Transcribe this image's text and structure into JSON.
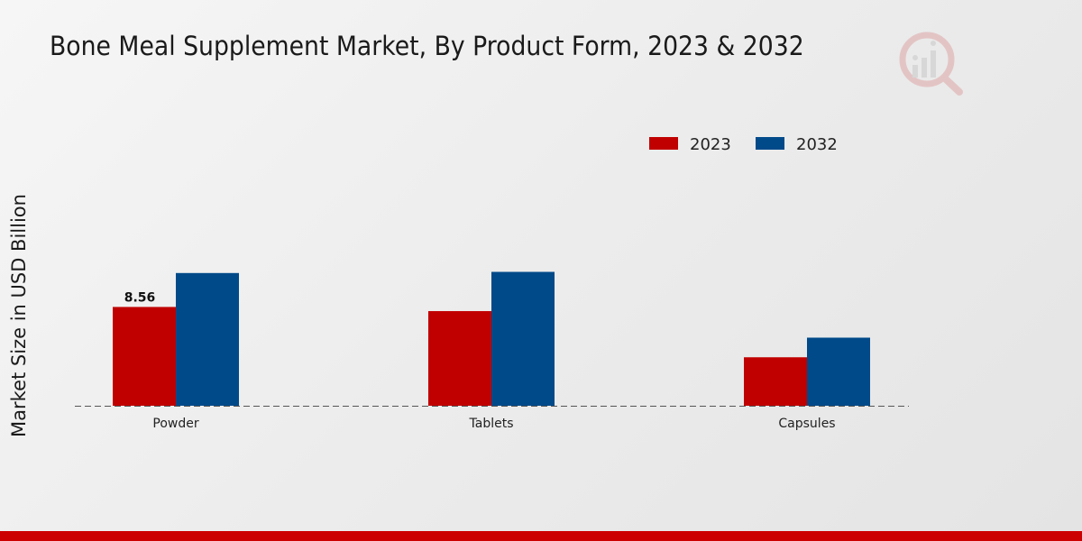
{
  "chart_data": {
    "type": "bar",
    "title": "Bone Meal Supplement Market, By Product Form, 2023 & 2032",
    "xlabel": "",
    "ylabel": "Market Size in USD Billion",
    "categories": [
      "Powder",
      "Tablets",
      "Capsules"
    ],
    "series": [
      {
        "name": "2023",
        "color": "#c00000",
        "values": [
          8.56,
          8.2,
          4.2
        ]
      },
      {
        "name": "2032",
        "color": "#004a8a",
        "values": [
          11.5,
          11.6,
          5.9
        ]
      }
    ],
    "data_labels": [
      {
        "series": 0,
        "index": 0,
        "text": "8.56"
      }
    ],
    "ylim": [
      0,
      35
    ],
    "legend_position": "top-right",
    "grid": false
  },
  "brand": {
    "accent": "#cc0000",
    "logo_icon": "market-research-logo-icon"
  }
}
